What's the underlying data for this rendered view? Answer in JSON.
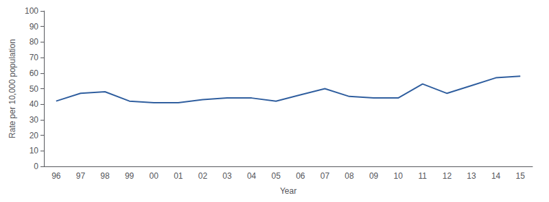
{
  "chart_data": {
    "type": "line",
    "categories": [
      "96",
      "97",
      "98",
      "99",
      "00",
      "01",
      "02",
      "03",
      "04",
      "05",
      "06",
      "07",
      "08",
      "09",
      "10",
      "11",
      "12",
      "13",
      "14",
      "15"
    ],
    "values": [
      42,
      47,
      48,
      42,
      41,
      41,
      43,
      44,
      44,
      42,
      46,
      50,
      45,
      44,
      44,
      53,
      47,
      52,
      57,
      58
    ],
    "color": "#2E5D9E",
    "xlabel": "Year",
    "ylabel": "Rate per 10,000 population",
    "ylim": [
      0,
      100
    ],
    "yticks": [
      0,
      10,
      20,
      30,
      40,
      50,
      60,
      70,
      80,
      90,
      100
    ],
    "grid": false
  }
}
